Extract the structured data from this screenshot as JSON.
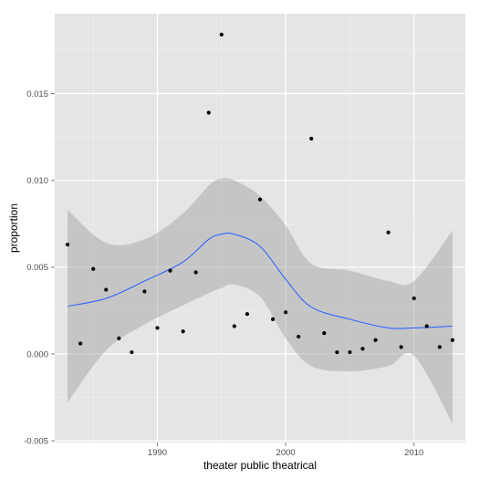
{
  "chart_data": {
    "type": "scatter",
    "xlabel": "theater public theatrical",
    "ylabel": "proportion",
    "xlim": [
      1982,
      2014
    ],
    "ylim": [
      -0.0051,
      0.0196
    ],
    "x_ticks": [
      1990,
      2000,
      2010
    ],
    "y_ticks": [
      -0.005,
      0.0,
      0.005,
      0.01,
      0.015
    ],
    "y_tick_labels": [
      "-0.005",
      "0.000",
      "0.005",
      "0.010",
      "0.015"
    ],
    "grid": true,
    "colors": {
      "panel": "#e5e5e5",
      "grid_major": "#ffffff",
      "points": "#000000",
      "smooth_line": "#3366ff",
      "ribbon": "#999999"
    },
    "points": [
      {
        "x": 1983,
        "y": 0.0063
      },
      {
        "x": 1984,
        "y": 0.0006
      },
      {
        "x": 1985,
        "y": 0.0049
      },
      {
        "x": 1986,
        "y": 0.0037
      },
      {
        "x": 1987,
        "y": 0.0009
      },
      {
        "x": 1988,
        "y": 0.0001
      },
      {
        "x": 1989,
        "y": 0.0036
      },
      {
        "x": 1990,
        "y": 0.0015
      },
      {
        "x": 1991,
        "y": 0.0048
      },
      {
        "x": 1992,
        "y": 0.0013
      },
      {
        "x": 1993,
        "y": 0.0047
      },
      {
        "x": 1994,
        "y": 0.0139
      },
      {
        "x": 1995,
        "y": 0.0184
      },
      {
        "x": 1996,
        "y": 0.0016
      },
      {
        "x": 1997,
        "y": 0.0023
      },
      {
        "x": 1998,
        "y": 0.0089
      },
      {
        "x": 1999,
        "y": 0.002
      },
      {
        "x": 2000,
        "y": 0.0024
      },
      {
        "x": 2001,
        "y": 0.001
      },
      {
        "x": 2002,
        "y": 0.0124
      },
      {
        "x": 2003,
        "y": 0.0012
      },
      {
        "x": 2004,
        "y": 0.0001
      },
      {
        "x": 2005,
        "y": 0.0001
      },
      {
        "x": 2006,
        "y": 0.0003
      },
      {
        "x": 2007,
        "y": 0.0008
      },
      {
        "x": 2008,
        "y": 0.007
      },
      {
        "x": 2009,
        "y": 0.0004
      },
      {
        "x": 2010,
        "y": 0.0032
      },
      {
        "x": 2011,
        "y": 0.0016
      },
      {
        "x": 2012,
        "y": 0.0004
      },
      {
        "x": 2013,
        "y": 0.0008
      }
    ],
    "smooth": {
      "x": [
        1983,
        1986,
        1989,
        1992,
        1994,
        1995,
        1996,
        1998,
        2000,
        2002,
        2005,
        2008,
        2010,
        2013
      ],
      "y": [
        0.00275,
        0.0032,
        0.0042,
        0.0053,
        0.0066,
        0.0069,
        0.0069,
        0.0062,
        0.0043,
        0.0027,
        0.002,
        0.0015,
        0.0015,
        0.0016
      ],
      "lower": [
        -0.0028,
        0.0002,
        0.0017,
        0.0028,
        0.0035,
        0.0038,
        0.004,
        0.0033,
        0.0009,
        -0.0007,
        -0.001,
        -0.0007,
        -0.0001,
        -0.004
      ],
      "upper": [
        0.0083,
        0.0064,
        0.0066,
        0.0081,
        0.0097,
        0.0101,
        0.01,
        0.0091,
        0.0074,
        0.0052,
        0.0048,
        0.0042,
        0.0042,
        0.0071
      ]
    }
  }
}
